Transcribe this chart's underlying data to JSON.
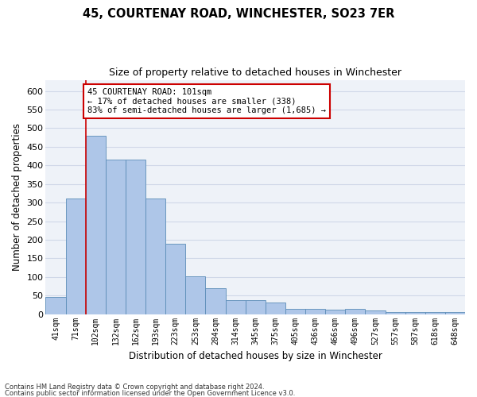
{
  "title": "45, COURTENAY ROAD, WINCHESTER, SO23 7ER",
  "subtitle": "Size of property relative to detached houses in Winchester",
  "xlabel": "Distribution of detached houses by size in Winchester",
  "ylabel": "Number of detached properties",
  "categories": [
    "41sqm",
    "71sqm",
    "102sqm",
    "132sqm",
    "162sqm",
    "193sqm",
    "223sqm",
    "253sqm",
    "284sqm",
    "314sqm",
    "345sqm",
    "375sqm",
    "405sqm",
    "436sqm",
    "466sqm",
    "496sqm",
    "527sqm",
    "557sqm",
    "587sqm",
    "618sqm",
    "648sqm"
  ],
  "values": [
    46,
    311,
    480,
    415,
    415,
    312,
    190,
    102,
    70,
    38,
    38,
    31,
    15,
    15,
    13,
    15,
    10,
    5,
    5,
    5,
    5
  ],
  "bar_color": "#aec6e8",
  "bar_edge_color": "#5b8db8",
  "property_line_x": 2,
  "annotation_text": "45 COURTENAY ROAD: 101sqm\n← 17% of detached houses are smaller (338)\n83% of semi-detached houses are larger (1,685) →",
  "annotation_box_color": "#ffffff",
  "annotation_box_edge_color": "#cc0000",
  "ylim": [
    0,
    630
  ],
  "yticks": [
    0,
    50,
    100,
    150,
    200,
    250,
    300,
    350,
    400,
    450,
    500,
    550,
    600
  ],
  "grid_color": "#d0d8e8",
  "plot_bg_color": "#eef2f8",
  "footer_line1": "Contains HM Land Registry data © Crown copyright and database right 2024.",
  "footer_line2": "Contains public sector information licensed under the Open Government Licence v3.0.",
  "red_line_color": "#cc0000"
}
